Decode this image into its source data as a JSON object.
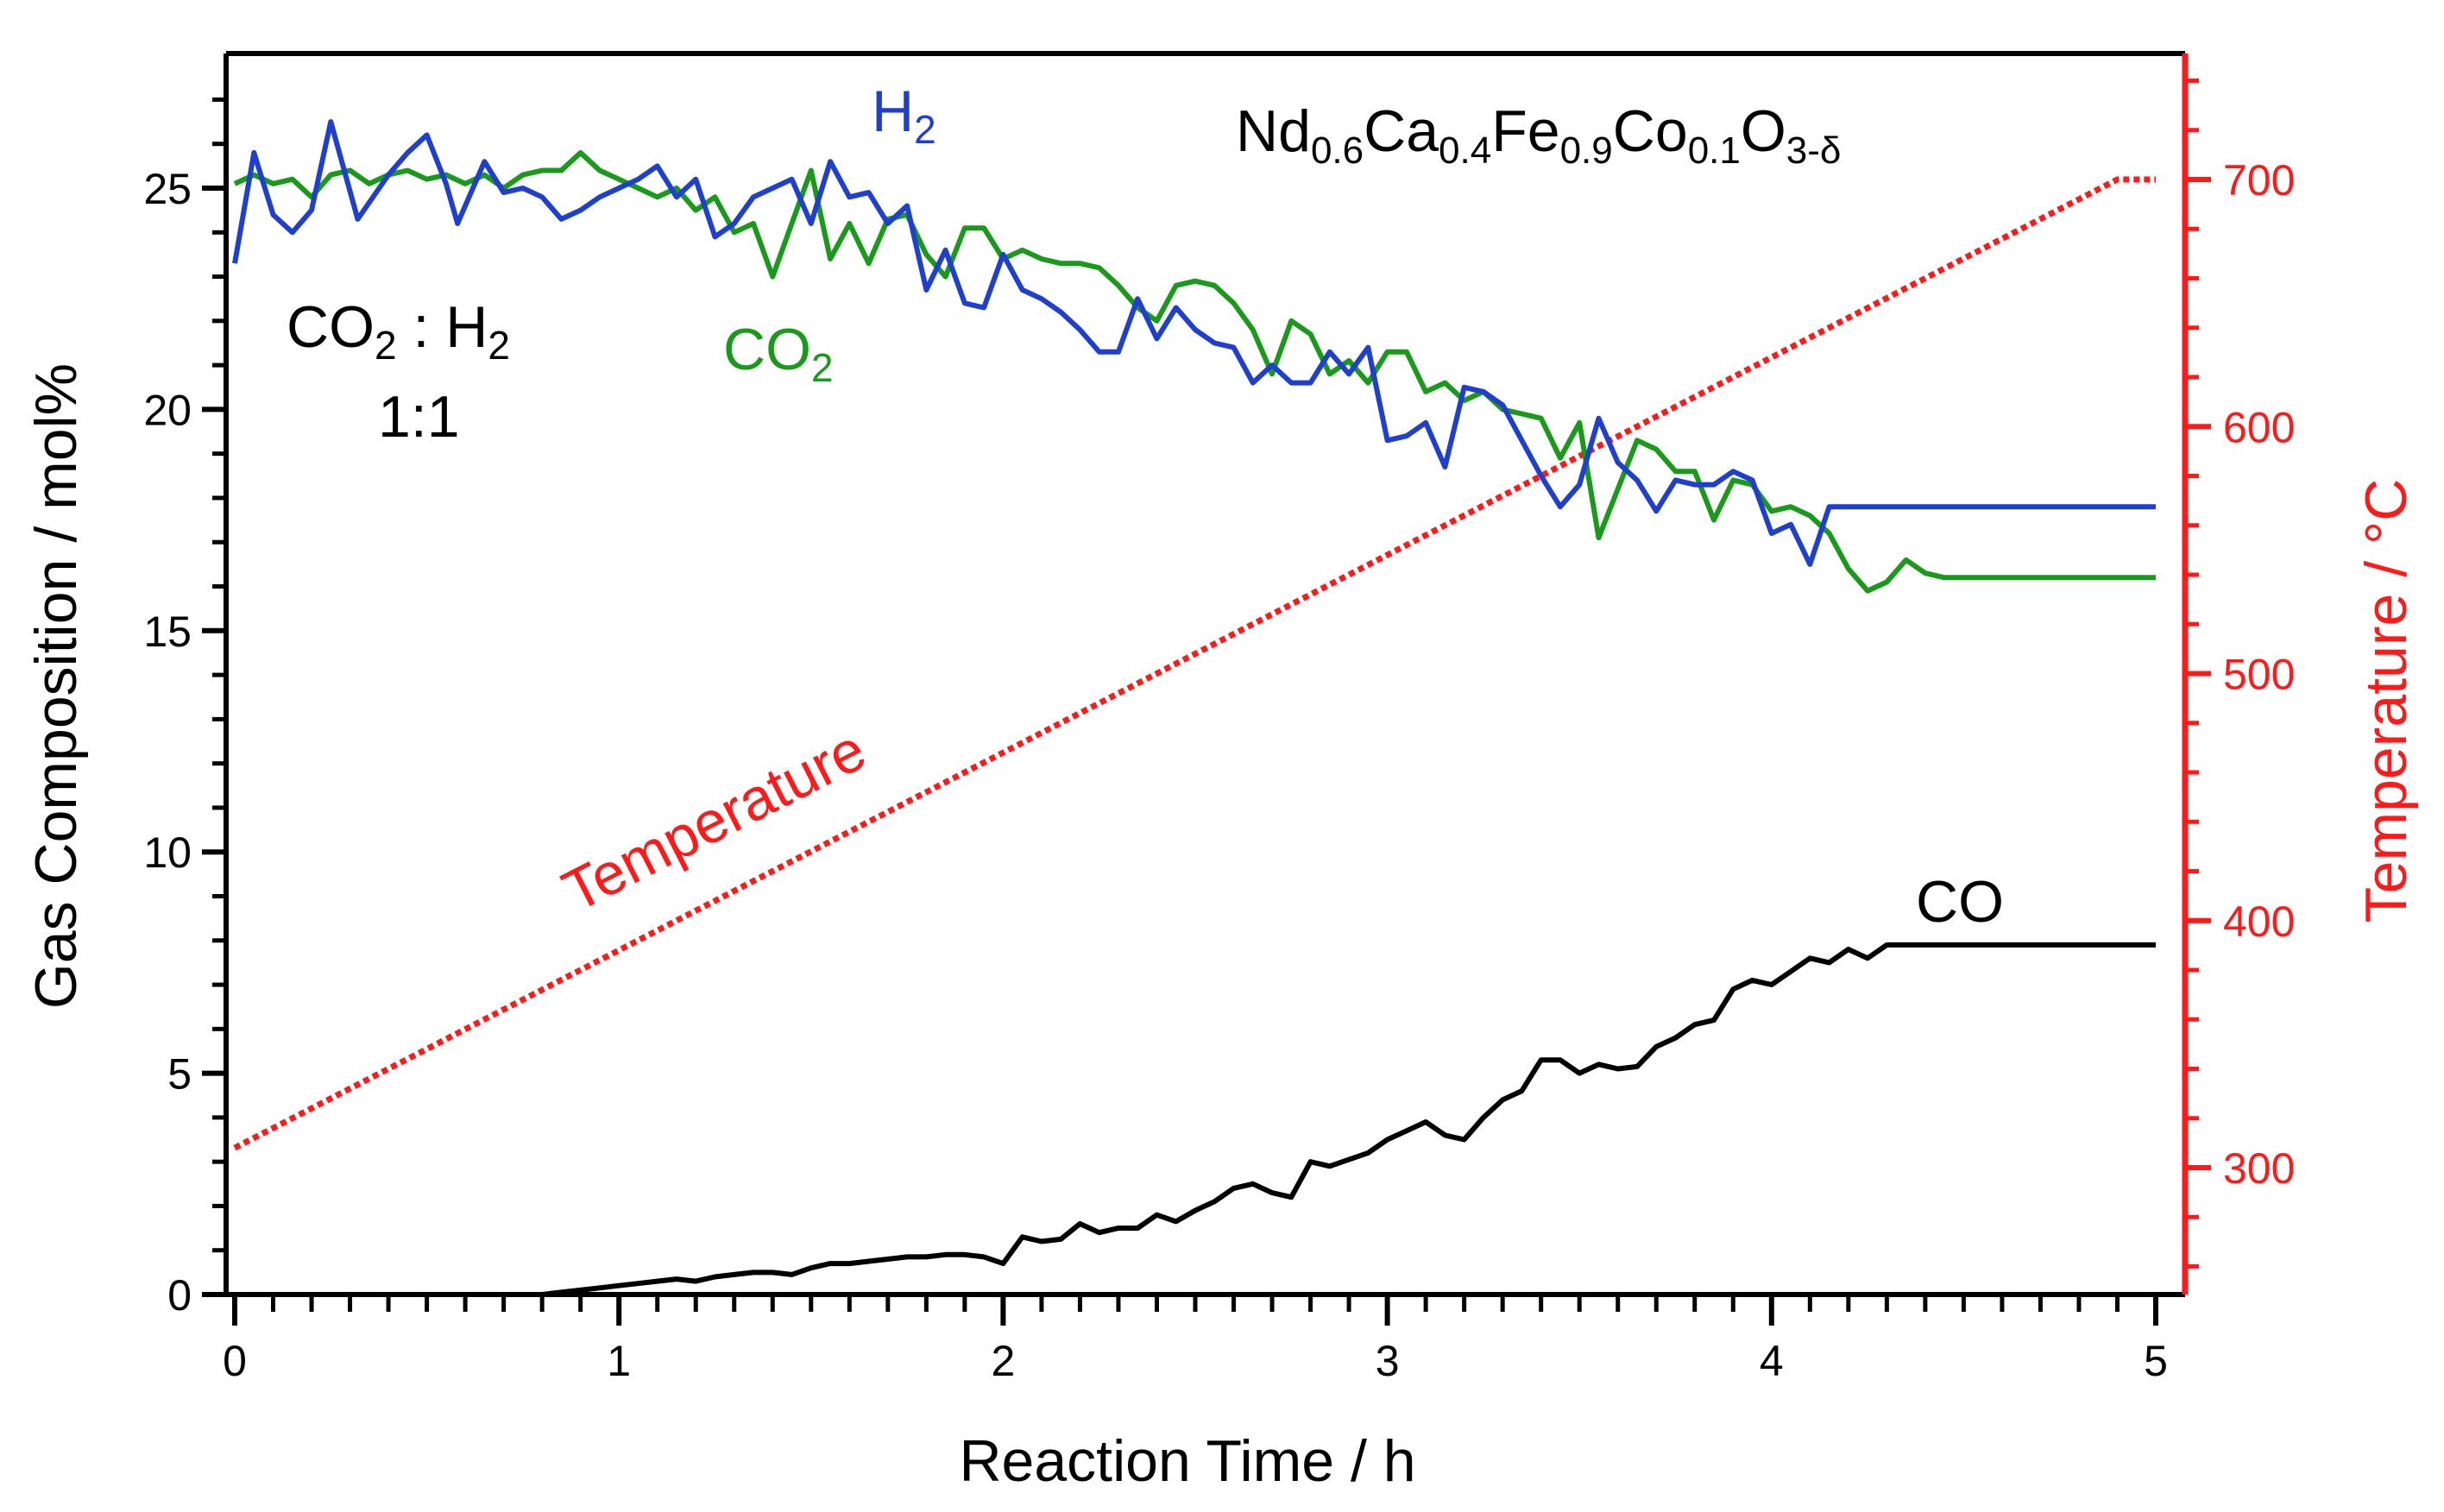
{
  "chart_data": {
    "type": "line",
    "title": "",
    "xlabel": "Reaction Time / h",
    "ylabel": "Gas Composition / mol%",
    "y2label": "Temperature / °C",
    "xlim": [
      0,
      5.1
    ],
    "ylim": [
      0,
      28
    ],
    "y2lim": [
      243,
      765
    ],
    "x_ticks": [
      0,
      1,
      2,
      3,
      4,
      5
    ],
    "x_tick_labels": [
      "0",
      "1",
      "2",
      "3",
      "4",
      "5"
    ],
    "y_ticks": [
      0,
      5,
      10,
      15,
      20,
      25
    ],
    "y_tick_labels": [
      "0",
      "5",
      "10",
      "15",
      "20",
      "25"
    ],
    "y2_ticks": [
      300,
      400,
      500,
      600,
      700
    ],
    "y2_tick_labels": [
      "300",
      "400",
      "500",
      "600",
      "700"
    ],
    "colors": {
      "H2": "#1f3fcf",
      "CO2": "#1a9a1a",
      "CO": "#000000",
      "Temperature": "#ff1a1a",
      "axis": "#000000",
      "axis_right": "#ff1a1a"
    },
    "annotations": {
      "h2_label": {
        "main": "H",
        "sub": "2"
      },
      "co2_label": {
        "main": "CO",
        "sub": "2"
      },
      "co_label": "CO",
      "temperature_label": "Temperature",
      "ratio_line1": {
        "a": "CO",
        "a_sub": "2",
        "sep": " : H",
        "b_sub": "2"
      },
      "ratio_line2": "1:1",
      "material": [
        {
          "t": "Nd",
          "sub": "0.6"
        },
        {
          "t": "Ca",
          "sub": "0.4"
        },
        {
          "t": "Fe",
          "sub": "0.9"
        },
        {
          "t": "Co",
          "sub": "0.1"
        },
        {
          "t": "O",
          "sub": "3-δ"
        }
      ]
    },
    "series": [
      {
        "name": "H2",
        "axis": "left",
        "x": [
          0.0,
          0.05,
          0.1,
          0.15,
          0.2,
          0.25,
          0.32,
          0.4,
          0.45,
          0.5,
          0.55,
          0.58,
          0.65,
          0.7,
          0.75,
          0.8,
          0.85,
          0.9,
          0.95,
          1.0,
          1.05,
          1.1,
          1.15,
          1.2,
          1.25,
          1.3,
          1.35,
          1.4,
          1.45,
          1.5,
          1.55,
          1.6,
          1.65,
          1.7,
          1.75,
          1.8,
          1.85,
          1.9,
          1.95,
          2.0,
          2.05,
          2.1,
          2.15,
          2.2,
          2.25,
          2.3,
          2.35,
          2.4,
          2.45,
          2.5,
          2.55,
          2.6,
          2.65,
          2.7,
          2.75,
          2.8,
          2.85,
          2.9,
          2.95,
          3.0,
          3.05,
          3.1,
          3.15,
          3.2,
          3.25,
          3.3,
          3.35,
          3.4,
          3.45,
          3.5,
          3.55,
          3.6,
          3.65,
          3.7,
          3.75,
          3.8,
          3.85,
          3.9,
          3.95,
          4.0,
          4.05,
          4.1,
          4.15,
          4.2,
          4.25,
          4.3,
          4.35,
          4.4,
          4.45,
          4.5,
          4.55,
          4.6,
          4.65,
          4.7,
          4.75,
          4.8,
          4.85,
          4.9,
          4.95,
          5.0
        ],
        "values": [
          23.3,
          25.8,
          24.4,
          24.0,
          24.5,
          26.5,
          24.3,
          25.3,
          25.8,
          26.2,
          25.1,
          24.2,
          25.6,
          24.9,
          25.0,
          24.8,
          24.3,
          24.5,
          24.8,
          25.0,
          25.2,
          25.5,
          24.8,
          25.2,
          23.9,
          24.2,
          24.8,
          25.0,
          25.2,
          24.2,
          25.6,
          24.8,
          24.9,
          24.2,
          24.6,
          22.7,
          23.6,
          22.4,
          22.3,
          23.5,
          22.7,
          22.5,
          22.2,
          21.8,
          21.3,
          21.3,
          22.5,
          21.6,
          22.3,
          21.8,
          21.5,
          21.4,
          20.6,
          21.0,
          20.6,
          20.6,
          21.3,
          20.8,
          21.4,
          19.3,
          19.4,
          19.7,
          18.7,
          20.5,
          20.4,
          20.1,
          19.3,
          18.5,
          17.8,
          18.3,
          19.8,
          18.8,
          18.4,
          17.7,
          18.4,
          18.3,
          18.3,
          18.6,
          18.4,
          17.2,
          17.4,
          16.5,
          17.8,
          17.8,
          17.8,
          17.8,
          17.8,
          17.8,
          17.8,
          17.8,
          17.8,
          17.8,
          17.8,
          17.8,
          17.8,
          17.8,
          17.8,
          17.8,
          17.8,
          17.8
        ]
      },
      {
        "name": "CO2",
        "axis": "left",
        "x": [
          0.0,
          0.05,
          0.1,
          0.15,
          0.2,
          0.25,
          0.3,
          0.35,
          0.4,
          0.45,
          0.5,
          0.55,
          0.6,
          0.65,
          0.7,
          0.75,
          0.8,
          0.85,
          0.9,
          0.95,
          1.0,
          1.05,
          1.1,
          1.15,
          1.2,
          1.25,
          1.3,
          1.35,
          1.4,
          1.45,
          1.5,
          1.55,
          1.6,
          1.65,
          1.7,
          1.75,
          1.8,
          1.85,
          1.9,
          1.95,
          2.0,
          2.05,
          2.1,
          2.15,
          2.2,
          2.25,
          2.3,
          2.35,
          2.4,
          2.45,
          2.5,
          2.55,
          2.6,
          2.65,
          2.7,
          2.75,
          2.8,
          2.85,
          2.9,
          2.95,
          3.0,
          3.05,
          3.1,
          3.15,
          3.2,
          3.25,
          3.3,
          3.35,
          3.4,
          3.45,
          3.5,
          3.55,
          3.6,
          3.65,
          3.7,
          3.75,
          3.8,
          3.85,
          3.9,
          3.95,
          4.0,
          4.05,
          4.1,
          4.15,
          4.2,
          4.25,
          4.3,
          4.35,
          4.4,
          4.45,
          4.5,
          4.55,
          4.6,
          4.65,
          4.7,
          4.75,
          4.8,
          4.85,
          4.9,
          4.95,
          5.0
        ],
        "values": [
          25.1,
          25.3,
          25.1,
          25.2,
          24.8,
          25.3,
          25.4,
          25.1,
          25.3,
          25.4,
          25.2,
          25.3,
          25.1,
          25.3,
          25.0,
          25.3,
          25.4,
          25.4,
          25.8,
          25.4,
          25.2,
          25.0,
          24.8,
          25.0,
          24.5,
          24.8,
          24.0,
          24.2,
          23.0,
          24.2,
          25.4,
          23.4,
          24.2,
          23.3,
          24.3,
          24.4,
          23.5,
          23.0,
          24.1,
          24.1,
          23.4,
          23.6,
          23.4,
          23.3,
          23.3,
          23.2,
          22.8,
          22.3,
          22.0,
          22.8,
          22.9,
          22.8,
          22.4,
          21.8,
          20.8,
          22.0,
          21.7,
          20.8,
          21.1,
          20.6,
          21.3,
          21.3,
          20.4,
          20.6,
          20.2,
          20.4,
          20.0,
          19.9,
          19.8,
          18.9,
          19.7,
          17.1,
          18.2,
          19.3,
          19.1,
          18.6,
          18.6,
          17.5,
          18.4,
          18.3,
          17.7,
          17.8,
          17.6,
          17.2,
          16.4,
          15.9,
          16.1,
          16.6,
          16.3,
          16.2,
          16.2,
          16.2,
          16.2,
          16.2,
          16.2,
          16.2,
          16.2,
          16.2,
          16.2,
          16.2,
          16.2
        ]
      },
      {
        "name": "CO",
        "axis": "left",
        "x": [
          0.0,
          0.1,
          0.2,
          0.3,
          0.4,
          0.5,
          0.6,
          0.7,
          0.8,
          0.85,
          0.9,
          0.95,
          1.0,
          1.05,
          1.1,
          1.15,
          1.2,
          1.25,
          1.3,
          1.35,
          1.4,
          1.45,
          1.5,
          1.55,
          1.6,
          1.65,
          1.7,
          1.75,
          1.8,
          1.85,
          1.9,
          1.95,
          2.0,
          2.05,
          2.1,
          2.15,
          2.2,
          2.25,
          2.3,
          2.35,
          2.4,
          2.45,
          2.5,
          2.55,
          2.6,
          2.65,
          2.7,
          2.75,
          2.8,
          2.85,
          2.9,
          2.95,
          3.0,
          3.05,
          3.1,
          3.15,
          3.2,
          3.25,
          3.3,
          3.35,
          3.4,
          3.45,
          3.5,
          3.55,
          3.6,
          3.65,
          3.7,
          3.75,
          3.8,
          3.85,
          3.9,
          3.95,
          4.0,
          4.05,
          4.1,
          4.15,
          4.2,
          4.25,
          4.3,
          4.35,
          4.4,
          4.45,
          4.5,
          4.55,
          4.6,
          4.65,
          4.7,
          4.75,
          4.8,
          4.85,
          4.9,
          4.95,
          5.0
        ],
        "values": [
          0,
          0,
          0,
          0,
          0,
          0,
          0,
          0,
          0,
          0.05,
          0.1,
          0.15,
          0.2,
          0.25,
          0.3,
          0.35,
          0.3,
          0.4,
          0.45,
          0.5,
          0.5,
          0.45,
          0.6,
          0.7,
          0.7,
          0.75,
          0.8,
          0.85,
          0.85,
          0.9,
          0.9,
          0.85,
          0.7,
          1.3,
          1.2,
          1.25,
          1.6,
          1.4,
          1.5,
          1.5,
          1.8,
          1.65,
          1.9,
          2.1,
          2.4,
          2.5,
          2.3,
          2.2,
          3.0,
          2.9,
          3.05,
          3.2,
          3.5,
          3.7,
          3.9,
          3.6,
          3.5,
          4.0,
          4.4,
          4.6,
          5.3,
          5.3,
          5.0,
          5.2,
          5.1,
          5.15,
          5.6,
          5.8,
          6.1,
          6.2,
          6.9,
          7.1,
          7.0,
          7.3,
          7.6,
          7.5,
          7.8,
          7.6,
          7.9,
          7.9,
          7.9,
          7.9,
          7.9,
          7.9,
          7.9,
          7.9,
          7.9,
          7.9,
          7.9,
          7.9,
          7.9,
          7.9,
          7.9
        ]
      },
      {
        "name": "Temperature",
        "axis": "right",
        "style": "dotted",
        "x": [
          0.0,
          4.9,
          5.0
        ],
        "values": [
          308,
          700,
          700
        ]
      }
    ]
  }
}
